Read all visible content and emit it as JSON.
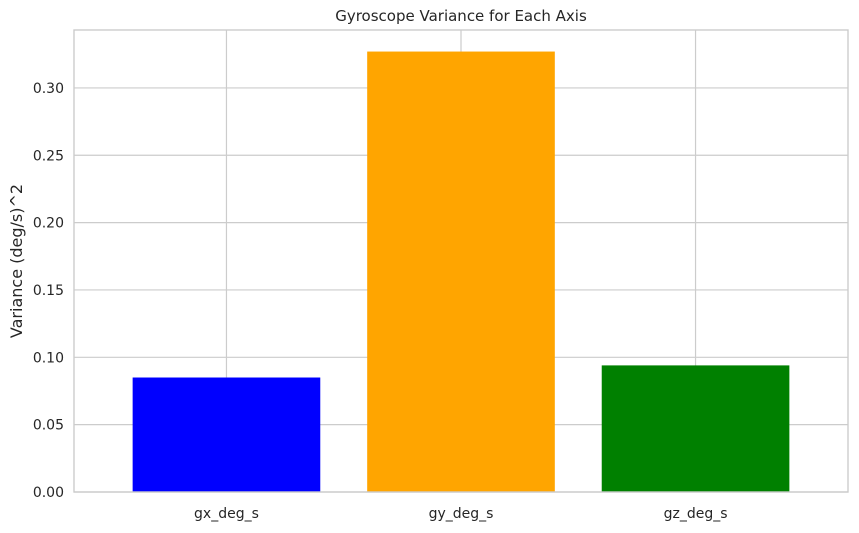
{
  "chart_data": {
    "type": "bar",
    "title": "Gyroscope Variance for Each Axis",
    "xlabel": "",
    "ylabel": "Variance (deg/s)^2",
    "categories": [
      "gx_deg_s",
      "gy_deg_s",
      "gz_deg_s"
    ],
    "values": [
      0.085,
      0.327,
      0.094
    ],
    "bar_colors": [
      "#0000ff",
      "#ffa500",
      "#008000"
    ],
    "ylim": [
      0,
      0.343
    ],
    "yticks": [
      0.0,
      0.05,
      0.1,
      0.15,
      0.2,
      0.25,
      0.3
    ],
    "ytick_labels": [
      "0.00",
      "0.05",
      "0.10",
      "0.15",
      "0.20",
      "0.25",
      "0.30"
    ],
    "grid": true,
    "legend": "none",
    "style": {
      "grid_color": "#cccccc",
      "spine_color": "#cccccc",
      "text_color": "#262626",
      "background": "#ffffff"
    }
  }
}
